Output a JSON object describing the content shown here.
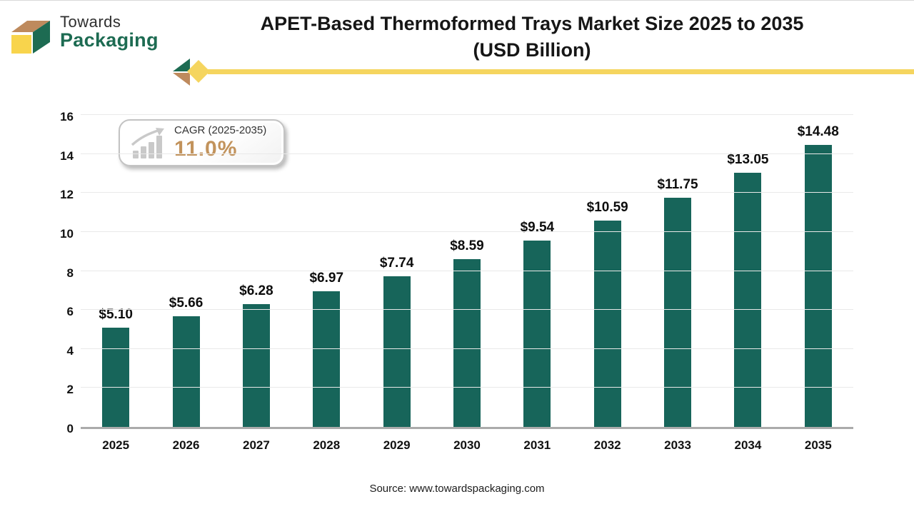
{
  "logo": {
    "icon": "box-logo-icon",
    "line1": "Towards",
    "line2": "Packaging"
  },
  "header": {
    "title_line1": "APET-Based Thermoformed Trays Market Size 2025 to 2035",
    "title_line2": "(USD Billion)"
  },
  "cagr_badge": {
    "icon": "growth-chart-icon",
    "label": "CAGR (2025-2035)",
    "value": "11.0%"
  },
  "chart_data": {
    "type": "bar",
    "title": "APET-Based Thermoformed Trays Market Size 2025 to 2035 (USD Billion)",
    "categories": [
      "2025",
      "2026",
      "2027",
      "2028",
      "2029",
      "2030",
      "2031",
      "2032",
      "2033",
      "2034",
      "2035"
    ],
    "values": [
      5.1,
      5.66,
      6.28,
      6.97,
      7.74,
      8.59,
      9.54,
      10.59,
      11.75,
      13.05,
      14.48
    ],
    "labels": [
      "$5.10",
      "$5.66",
      "$6.28",
      "$6.97",
      "$7.74",
      "$8.59",
      "$9.54",
      "$10.59",
      "$11.75",
      "$13.05",
      "$14.48"
    ],
    "xlabel": "",
    "ylabel": "",
    "ylim": [
      0,
      16
    ],
    "yticks": [
      0,
      2,
      4,
      6,
      8,
      10,
      12,
      14,
      16
    ],
    "grid": true,
    "legend": "none",
    "bar_color": "#17655A"
  },
  "footer": {
    "source": "Source: www.towardspackaging.com"
  },
  "colors": {
    "bar": "#17655A",
    "logo_green": "#1D6B52",
    "logo_yellow": "#F8D44C",
    "logo_tan": "#BE8A5D",
    "divider_yellow": "#F5D55F",
    "cagr_value": "#C2935C",
    "gridline": "#e9e9e9",
    "axis_line": "#ababab"
  }
}
